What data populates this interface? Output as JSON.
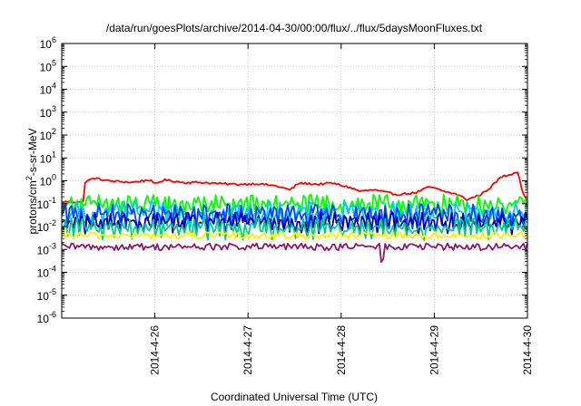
{
  "chart_data": {
    "type": "line",
    "title": "/data/run/goesPlots/archive/2014-04-30/00:00/flux/../flux/5daysMoonFluxes.txt",
    "xlabel": "Coordinated Universal Time (UTC)",
    "ylabel": "protons/cm2-s-sr-MeV",
    "ylabel_parts": {
      "main": "protons/cm",
      "sup": "2",
      "rest": "-s-sr-MeV"
    },
    "y_scale": "log",
    "ylim": [
      1e-06,
      1000000.0
    ],
    "y_ticks": [
      {
        "base": "10",
        "exp": "6"
      },
      {
        "base": "10",
        "exp": "5"
      },
      {
        "base": "10",
        "exp": "4"
      },
      {
        "base": "10",
        "exp": "3"
      },
      {
        "base": "10",
        "exp": "2"
      },
      {
        "base": "10",
        "exp": "1"
      },
      {
        "base": "10",
        "exp": "0"
      },
      {
        "base": "10",
        "exp": "-1"
      },
      {
        "base": "10",
        "exp": "-2"
      },
      {
        "base": "10",
        "exp": "-3"
      },
      {
        "base": "10",
        "exp": "-4"
      },
      {
        "base": "10",
        "exp": "-5"
      },
      {
        "base": "10",
        "exp": "-6"
      }
    ],
    "x_range_days": [
      "2014-4-25",
      "2014-4-30"
    ],
    "x_ticks": [
      "2014-4-26",
      "2014-4-27",
      "2014-4-28",
      "2014-4-29",
      "2014-4-30"
    ],
    "grid": true,
    "legend": "none",
    "series": [
      {
        "color": "#ff0000",
        "base": 1.0,
        "var": 0.1,
        "points": [
          [
            2014.25,
            0.9
          ],
          [
            2014.35,
            1.3
          ],
          [
            2014.5,
            1.0
          ],
          [
            2014.75,
            0.85
          ],
          [
            2014.95,
            1.1
          ],
          [
            2014.99,
            0.7
          ],
          [
            2025.1,
            1.1
          ],
          [
            2025.3,
            0.85
          ],
          [
            2025.5,
            0.85
          ],
          [
            2025.7,
            0.75
          ],
          [
            2025.9,
            0.7
          ],
          [
            2026.1,
            0.75
          ],
          [
            2026.3,
            0.6
          ],
          [
            2026.45,
            0.4
          ],
          [
            2026.55,
            0.8
          ],
          [
            2026.75,
            0.7
          ],
          [
            2026.9,
            0.8
          ],
          [
            2027.1,
            0.5
          ],
          [
            2027.2,
            0.35
          ],
          [
            2027.35,
            0.4
          ],
          [
            2027.5,
            0.3
          ],
          [
            2027.6,
            0.25
          ],
          [
            2027.8,
            0.3
          ],
          [
            2027.95,
            0.55
          ],
          [
            2028.1,
            0.35
          ],
          [
            2028.25,
            0.25
          ],
          [
            2028.35,
            0.15
          ],
          [
            2028.5,
            0.25
          ],
          [
            2028.6,
            0.5
          ],
          [
            2028.72,
            1.5
          ],
          [
            2028.8,
            1.8
          ],
          [
            2028.9,
            2.6
          ],
          [
            2028.93,
            0.6
          ],
          [
            2028.97,
            0.2
          ],
          [
            2029.0,
            0.12
          ]
        ]
      },
      {
        "color": "#00ff00",
        "base": 0.12,
        "var": 0.25
      },
      {
        "color": "#00c8ff",
        "base": 0.05,
        "var": 0.3
      },
      {
        "color": "#0044ff",
        "base": 0.04,
        "var": 0.3
      },
      {
        "color": "#0000aa",
        "base": 0.02,
        "var": 0.25
      },
      {
        "color": "#00cc88",
        "base": 0.012,
        "var": 0.25
      },
      {
        "color": "#ffee00",
        "base": 0.004,
        "var": 0.12
      },
      {
        "color": "#8b1a6b",
        "base": 0.0013,
        "var": 0.12
      }
    ]
  }
}
